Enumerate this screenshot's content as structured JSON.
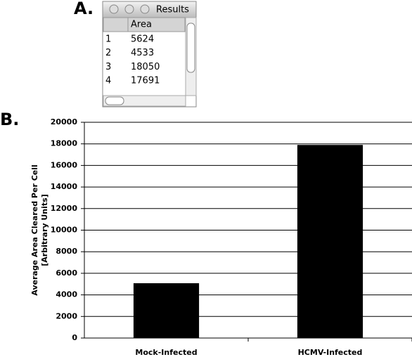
{
  "panel_labels": [
    "A.",
    "B."
  ],
  "results_window": {
    "title": "Results",
    "column": "Area",
    "rows": [
      [
        1,
        5624
      ],
      [
        2,
        4533
      ],
      [
        3,
        18050
      ],
      [
        4,
        17691
      ]
    ]
  },
  "chart_data": {
    "type": "bar",
    "categories": [
      "Mock-Infected",
      "HCMV-Infected"
    ],
    "values": [
      5080,
      17900
    ],
    "color": "#000000",
    "ylabel": [
      "Average Area Cleared Per Cell",
      "[Arbitrary Units]"
    ],
    "ylim": [
      0,
      20000
    ],
    "yticks": [
      0,
      2000,
      4000,
      6000,
      8000,
      10000,
      12000,
      14000,
      16000,
      18000,
      20000
    ],
    "grid": true
  }
}
